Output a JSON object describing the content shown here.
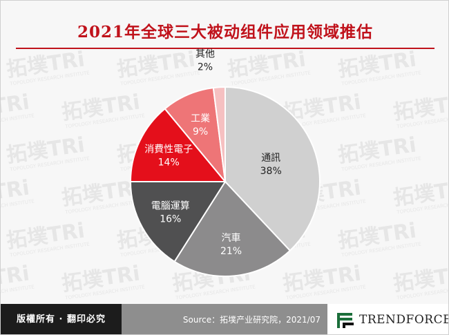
{
  "title": "2021年全球三大被动组件应用领域推估",
  "watermark": {
    "brand": "拓墣TRi",
    "subtitle": "TOPOLOGY RESEARCH INSTITUTE"
  },
  "chart_data": {
    "type": "pie",
    "title": "2021年全球三大被动组件应用领域推估",
    "unit": "%",
    "slices": [
      {
        "name": "通訊",
        "value": 38,
        "label": "38%",
        "color": "#d0d0d0",
        "text_color": "#222222"
      },
      {
        "name": "汽車",
        "value": 21,
        "label": "21%",
        "color": "#8c8b8c",
        "text_color": "#ffffff"
      },
      {
        "name": "電腦運算",
        "value": 16,
        "label": "16%",
        "color": "#505051",
        "text_color": "#ffffff"
      },
      {
        "name": "消費性電子",
        "value": 14,
        "label": "14%",
        "color": "#e40f1b",
        "text_color": "#ffffff"
      },
      {
        "name": "工業",
        "value": 9,
        "label": "9%",
        "color": "#ee7577",
        "text_color": "#ffffff"
      },
      {
        "name": "其他",
        "value": 2,
        "label": "2%",
        "color": "#f6c0c1",
        "text_color": "#222222"
      }
    ]
  },
  "footer": {
    "copyright": "版權所有 · 翻印必究",
    "source": "Source：拓墣产业研究院，2021/07",
    "logo_text": "TRENDFORCE"
  }
}
